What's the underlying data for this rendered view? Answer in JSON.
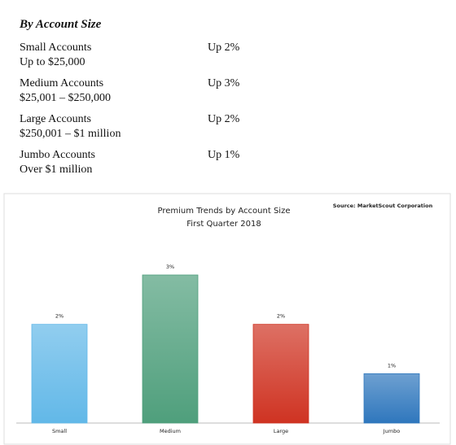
{
  "header": {
    "title": "By Account Size"
  },
  "rows": [
    {
      "name": "Small Accounts",
      "range": "Up to $25,000",
      "change": "Up 2%"
    },
    {
      "name": "Medium Accounts",
      "range": "$25,001 – $250,000",
      "change": "Up 3%"
    },
    {
      "name": "Large Accounts",
      "range": "$250,001 – $1 million",
      "change": "Up 2%"
    },
    {
      "name": "Jumbo Accounts",
      "range": "Over $1 million",
      "change": "Up 1%"
    }
  ],
  "chart_data": {
    "type": "bar",
    "title": "Premium Trends by Account Size",
    "subtitle": "First Quarter 2018",
    "source": "Source: MarketScout Corporation",
    "categories": [
      "Small",
      "Medium",
      "Large",
      "Jumbo"
    ],
    "values": [
      2,
      3,
      2,
      1
    ],
    "value_labels": [
      "2%",
      "3%",
      "2%",
      "1%"
    ],
    "colors": [
      "#62b8e8",
      "#4f9f7c",
      "#cf3322",
      "#2f77bd"
    ]
  }
}
